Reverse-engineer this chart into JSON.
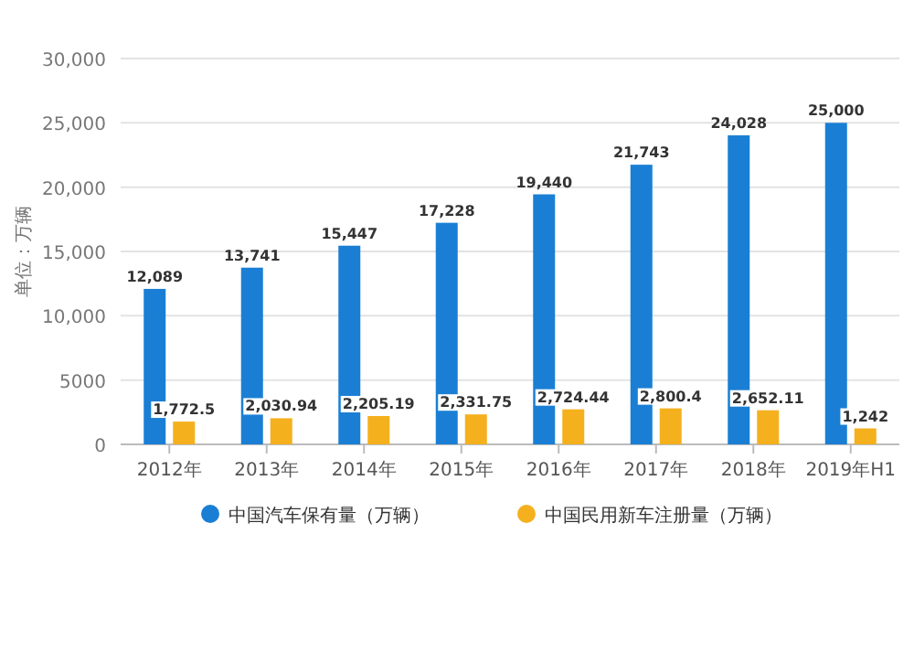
{
  "chart_data": {
    "type": "bar",
    "ylabel": "单位：万辆",
    "categories": [
      "2012年",
      "2013年",
      "2014年",
      "2015年",
      "2016年",
      "2017年",
      "2018年",
      "2019年H1"
    ],
    "series": [
      {
        "name": "中国汽车保有量（万辆）",
        "color": "#1a7fd4",
        "values": [
          12089,
          13741,
          15447,
          17228,
          19440,
          21743,
          24028,
          25000
        ],
        "value_labels": [
          "12,089",
          "13,741",
          "15,447",
          "17,228",
          "19,440",
          "21,743",
          "24,028",
          "25,000"
        ]
      },
      {
        "name": "中国民用新车注册量（万辆）",
        "color": "#f5b01e",
        "values": [
          1772.5,
          2030.94,
          2205.19,
          2331.75,
          2724.44,
          2800.4,
          2652.11,
          1242
        ],
        "value_labels": [
          "1,772.5",
          "2,030.94",
          "2,205.19",
          "2,331.75",
          "2,724.44",
          "2,800.4",
          "2,652.11",
          "1,242"
        ]
      }
    ],
    "ylim": [
      0,
      30000
    ],
    "yticks": [
      {
        "value": 0,
        "label": "0"
      },
      {
        "value": 5000,
        "label": "5000"
      },
      {
        "value": 10000,
        "label": "10,000"
      },
      {
        "value": 15000,
        "label": "15,000"
      },
      {
        "value": 20000,
        "label": "20,000"
      },
      {
        "value": 25000,
        "label": "25,000"
      },
      {
        "value": 30000,
        "label": "30,000"
      }
    ],
    "grid": "y",
    "legend": "bottom"
  }
}
